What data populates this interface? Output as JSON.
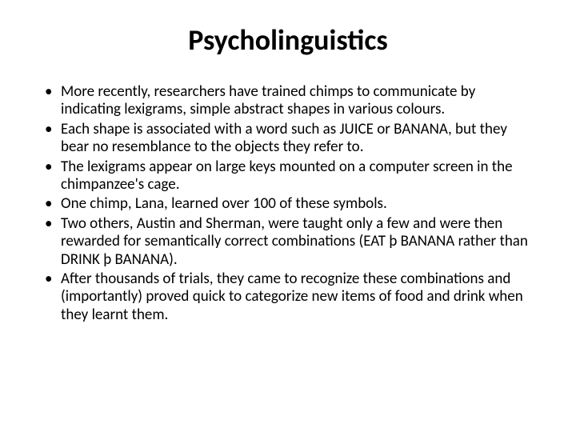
{
  "slide": {
    "title": "Psycholinguistics",
    "bullets": [
      "More recently, researchers have trained chimps to communicate by indicating lexigrams, simple abstract shapes in various colours.",
      " Each shape is associated with a word such as JUICE or BANANA, but they bear no resemblance to the objects they refer to.",
      " The lexigrams appear on large keys mounted on a computer screen in the chimpanzee's cage.",
      "One chimp, Lana, learned over 100 of these symbols.",
      "Two others, Austin and Sherman, were taught only a few and were then rewarded for semantically correct combinations (EAT þ BANANA rather than DRINK þ BANANA).",
      " After thousands of trials, they came to recognize these combinations and (importantly) proved quick to categorize new items of food and drink when they learnt them."
    ],
    "title_fontsize": 36,
    "bullet_fontsize": 19,
    "text_color": "#000000",
    "background_color": "#ffffff"
  }
}
